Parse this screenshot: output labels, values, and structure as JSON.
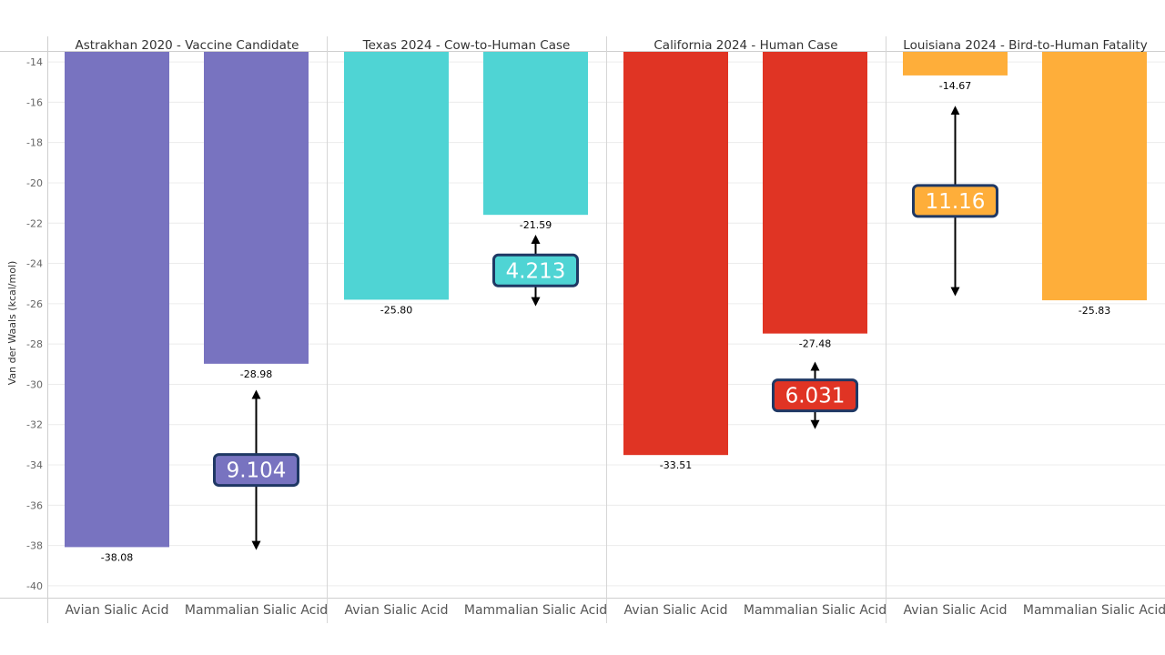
{
  "chart_data": {
    "type": "bar",
    "ylabel": "Van der Waals (kcal/mol)",
    "ylim": [
      -40.5,
      -13.5
    ],
    "yticks": [
      -14,
      -16,
      -18,
      -20,
      -22,
      -24,
      -26,
      -28,
      -30,
      -32,
      -34,
      -36,
      -38,
      -40
    ],
    "grid": true,
    "categories": [
      "Avian Sialic Acid",
      "Mammalian Sialic Acid"
    ],
    "panels": [
      {
        "title": "Astrakhan 2020 - Vaccine Candidate",
        "color": "#7873c0",
        "values": [
          -38.08,
          -28.98
        ],
        "value_labels": [
          "-38.08",
          "-28.98"
        ],
        "difference": "9.104",
        "arrow_range": [
          -30.5,
          -38.0
        ]
      },
      {
        "title": "Texas 2024 - Cow-to-Human Case",
        "color": "#4fd4d4",
        "values": [
          -25.8,
          -21.59
        ],
        "value_labels": [
          "-25.80",
          "-21.59"
        ],
        "difference": "4.213",
        "arrow_range": [
          -22.8,
          -25.9
        ]
      },
      {
        "title": "California 2024 - Human Case",
        "color": "#e03424",
        "values": [
          -33.51,
          -27.48
        ],
        "value_labels": [
          "-33.51",
          "-27.48"
        ],
        "difference": "6.031",
        "arrow_range": [
          -29.1,
          -32.0
        ]
      },
      {
        "title": "Louisiana 2024 - Bird-to-Human Fatality",
        "color": "#feae3a",
        "values": [
          -14.67,
          -25.83
        ],
        "value_labels": [
          "-14.67",
          "-25.83"
        ],
        "difference": "11.16",
        "arrow_range": [
          -16.4,
          -25.4
        ]
      }
    ]
  }
}
